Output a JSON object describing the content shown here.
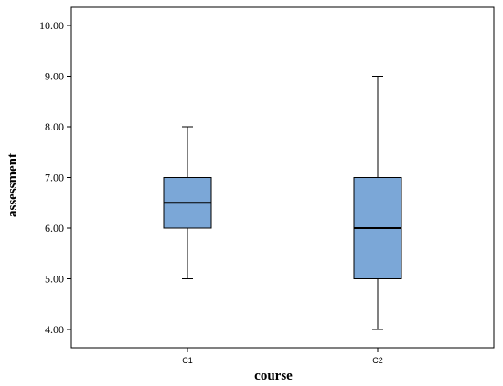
{
  "chart_data": {
    "type": "box",
    "xlabel": "course",
    "ylabel": "assessment",
    "ylim": [
      3.75,
      10.25
    ],
    "yticks": [
      "4.00",
      "5.00",
      "6.00",
      "7.00",
      "8.00",
      "9.00",
      "10.00"
    ],
    "grid": false,
    "categories": [
      "C1",
      "C2"
    ],
    "boxes": [
      {
        "category": "C1",
        "min": 5.0,
        "q1": 6.0,
        "median": 6.5,
        "q3": 7.0,
        "max": 8.0
      },
      {
        "category": "C2",
        "min": 4.0,
        "q1": 5.0,
        "median": 6.0,
        "q3": 7.0,
        "max": 9.0
      }
    ],
    "colors": {
      "box_fill": "#7BA7D7",
      "stroke": "#000000"
    }
  }
}
